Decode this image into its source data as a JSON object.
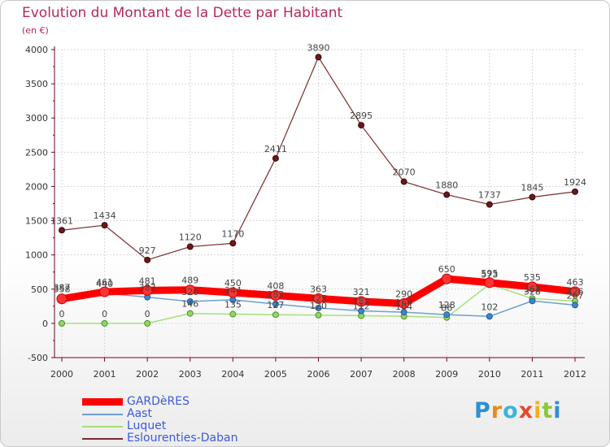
{
  "header": {
    "title": "Evolution du Montant de la Dette par Habitant",
    "subtitle": "(en €)"
  },
  "brand": {
    "letters": [
      "P",
      "r",
      "o",
      "x",
      "i",
      "t",
      "i"
    ]
  },
  "colors": {
    "gardères": "#ff0000",
    "aast": "#6ea0d0",
    "luquet": "#a8e07a",
    "eslourenties": "#7a2a2a",
    "axis": "#7a0020",
    "grid": "#d8d8d8",
    "legend_text": "#3b5bd8"
  },
  "chart_data": {
    "type": "line",
    "title": "Evolution du Montant de la Dette par Habitant",
    "ylabel": "(en €)",
    "xlabel": "",
    "x": [
      "2000",
      "2001",
      "2002",
      "2003",
      "2004",
      "2005",
      "2006",
      "2007",
      "2008",
      "2009",
      "2010",
      "2011",
      "2012"
    ],
    "ylim": [
      -500,
      4000
    ],
    "yticks": [
      "-500",
      "0",
      "500",
      "1000",
      "1500",
      "2000",
      "2500",
      "3000",
      "3500",
      "4000"
    ],
    "grid": true,
    "legend_position": "bottom-left",
    "series": [
      {
        "name": "GARDèRES",
        "key": "gardères",
        "values": [
          358,
          461,
          481,
          489,
          450,
          408,
          363,
          321,
          290,
          650,
          595,
          535,
          463
        ],
        "labels": [
          "358",
          "461",
          "481",
          "489",
          "450",
          "408",
          "363",
          "321",
          "290",
          "650",
          "595",
          "535",
          "463"
        ]
      },
      {
        "name": "Aast",
        "key": "aast",
        "values": [
          387,
          440,
          383,
          320,
          344,
          282,
          225,
          182,
          164,
          128,
          102,
          328,
          267
        ],
        "labels": [
          "387",
          "440",
          "383",
          "320",
          "344",
          "282",
          "225",
          "182",
          "164",
          "128",
          "102",
          "328",
          "267"
        ]
      },
      {
        "name": "Luquet",
        "key": "luquet",
        "values": [
          0,
          0,
          0,
          146,
          135,
          127,
          120,
          112,
          104,
          86,
          573,
          362,
          326
        ],
        "labels": [
          "0",
          "0",
          "0",
          "146",
          "135",
          "127",
          "120",
          "112",
          "104",
          "86",
          "573",
          "362",
          "326"
        ]
      },
      {
        "name": "Eslourenties-Daban",
        "key": "eslourenties",
        "values": [
          1361,
          1434,
          927,
          1120,
          1170,
          2411,
          3890,
          2895,
          2070,
          1880,
          1737,
          1845,
          1924
        ],
        "labels": [
          "1361",
          "1434",
          "927",
          "1120",
          "1170",
          "2411",
          "3890",
          "2895",
          "2070",
          "1880",
          "1737",
          "1845",
          "1924"
        ]
      }
    ]
  }
}
